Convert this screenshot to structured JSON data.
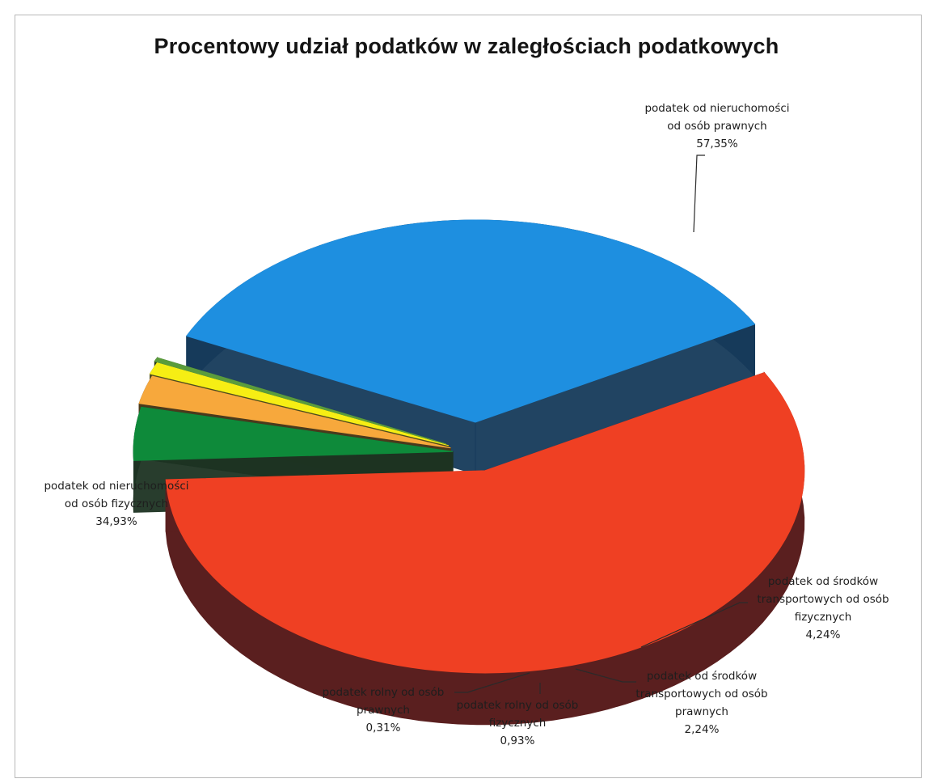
{
  "chart_data": {
    "type": "pie",
    "title": "Procentowy udział podatków w zaległościach podatkowych",
    "style": "3d-exploded",
    "slices": [
      {
        "name": "podatek od nieruchomości od osób prawnych",
        "label_lines": [
          "podatek od nieruchomości",
          "od osób prawnych"
        ],
        "value": 57.35,
        "value_label": "57,35%",
        "color": "#ef4023",
        "side_color": "#5a1f1f"
      },
      {
        "name": "podatek od środków transportowych od osób fizycznych",
        "label_lines": [
          "podatek od środków",
          "transportowych od osób",
          "fizycznych"
        ],
        "value": 4.24,
        "value_label": "4,24%",
        "color": "#0e8a3a",
        "side_color": "#1d3322"
      },
      {
        "name": "podatek od środków transportowych od osób prawnych",
        "label_lines": [
          "podatek od środków",
          "transportowych od osób",
          "prawnych"
        ],
        "value": 2.24,
        "value_label": "2,24%",
        "color": "#f7a83c",
        "side_color": "#4a3a1c"
      },
      {
        "name": "podatek rolny od osób fizycznych",
        "label_lines": [
          "podatek rolny od osób",
          "fizycznych"
        ],
        "value": 0.93,
        "value_label": "0,93%",
        "color": "#f6ee14",
        "side_color": "#4f4d1e"
      },
      {
        "name": "podatek rolny od osób prawnych",
        "label_lines": [
          "podatek rolny od osób",
          "prawnych"
        ],
        "value": 0.31,
        "value_label": "0,31%",
        "color": "#5b9c3c",
        "side_color": "#2a3a1e"
      },
      {
        "name": "podatek od nieruchomości od osób fizycznych",
        "label_lines": [
          "podatek od nieruchomości",
          "od osób fizycznych"
        ],
        "value": 34.93,
        "value_label": "34,93%",
        "color": "#1e8fe0",
        "side_color": "#163a5a"
      }
    ]
  }
}
